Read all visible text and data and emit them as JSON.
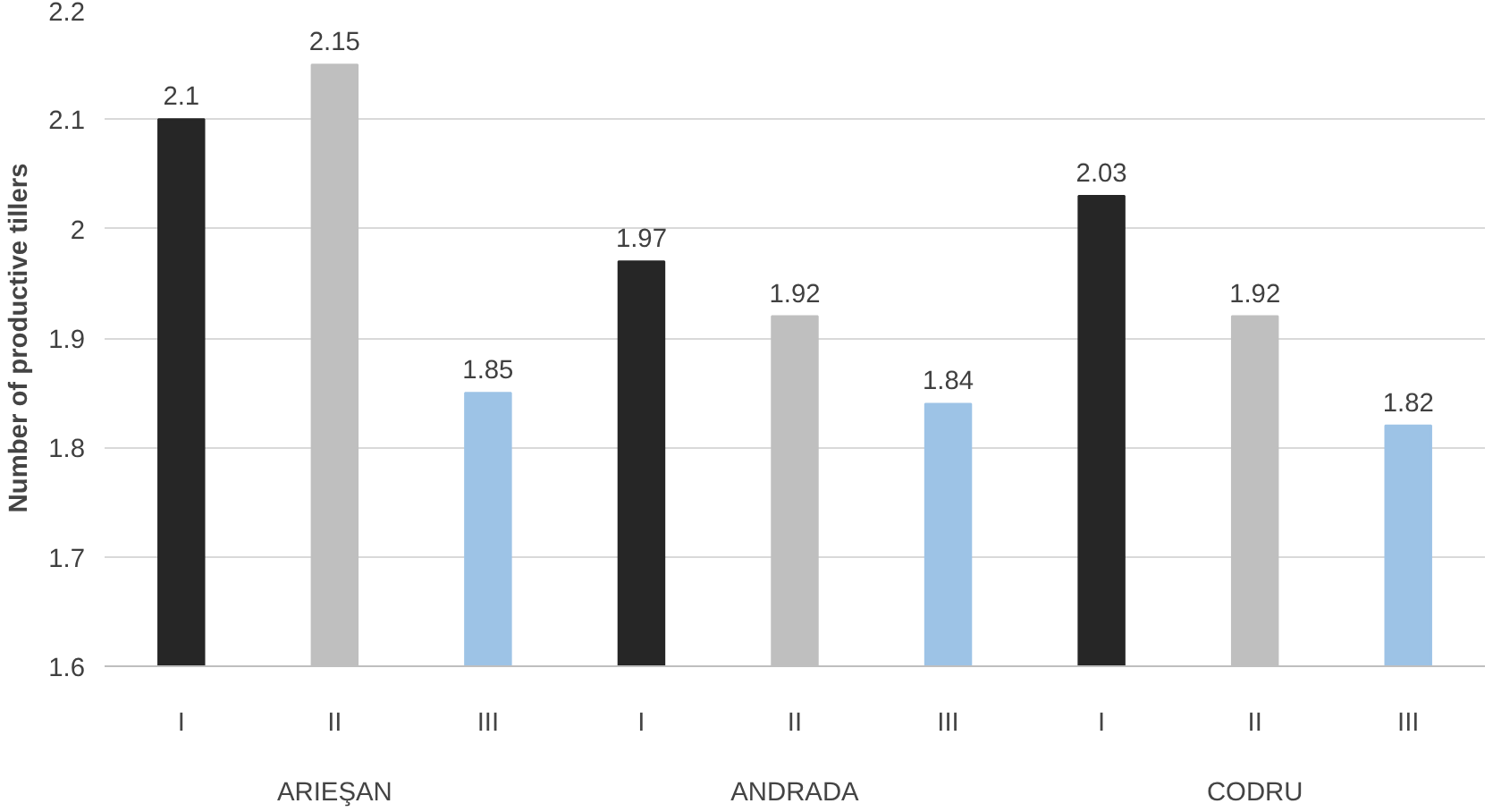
{
  "chart_data": {
    "type": "bar",
    "ylabel": "Number of productive tillers",
    "categories": [
      "ARIEŞAN",
      "ANDRADA",
      "CODRU"
    ],
    "series": [
      {
        "name": "I",
        "color": "#262626",
        "values": [
          2.1,
          1.97,
          2.03
        ]
      },
      {
        "name": "II",
        "color": "#bfbfbf",
        "values": [
          2.15,
          1.92,
          1.92
        ]
      },
      {
        "name": "III",
        "color": "#9dc3e6",
        "values": [
          1.85,
          1.84,
          1.82
        ]
      }
    ],
    "ylim": [
      1.6,
      2.2
    ],
    "yticks": [
      1.6,
      1.7,
      1.8,
      1.9,
      2,
      2.1,
      2.2
    ],
    "grid": "y",
    "data_labels": true,
    "legend": false
  }
}
